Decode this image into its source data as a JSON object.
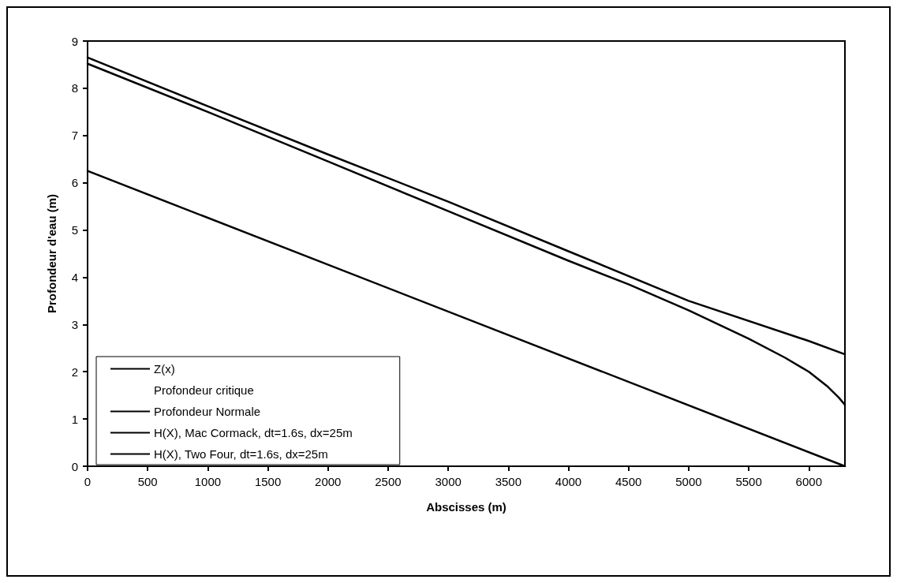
{
  "chart_data": {
    "type": "line",
    "xlabel": "Abscisses (m)",
    "ylabel": "Profondeur d'eau (m)",
    "xlim": [
      0,
      6300
    ],
    "xticks": [
      0,
      500,
      1000,
      1500,
      2000,
      2500,
      3000,
      3500,
      4000,
      4500,
      5000,
      5500,
      6000
    ],
    "ylim": [
      0,
      9
    ],
    "yticks": [
      0,
      1,
      2,
      3,
      4,
      5,
      6,
      7,
      8,
      9
    ],
    "grid": false,
    "legend": "bottom left",
    "marker": "none",
    "line_style": "solid",
    "series": [
      {
        "name": "Z(x)",
        "color": "#000000",
        "x": [
          0,
          6300
        ],
        "values": [
          6.25,
          0
        ]
      },
      {
        "name": "Profondeur critique"
      },
      {
        "name": "Profondeur Normale",
        "color": "#000000",
        "x": [
          0,
          1000,
          2000,
          3000,
          4000,
          5000,
          6000,
          6300
        ],
        "values": [
          8.65,
          7.62,
          6.6,
          5.6,
          4.55,
          3.5,
          2.65,
          2.37
        ]
      },
      {
        "name": "H(X), Mac Cormack, dt=1.6s, dx=25m",
        "color": "#000000",
        "x": [
          0,
          1000,
          2000,
          3000,
          4000,
          4500,
          5000,
          5500,
          5800,
          6000,
          6150,
          6250,
          6300
        ],
        "values": [
          8.52,
          7.5,
          6.45,
          5.4,
          4.35,
          3.85,
          3.3,
          2.7,
          2.3,
          2.0,
          1.7,
          1.45,
          1.3
        ]
      },
      {
        "name": "H(X), Two Four, dt=1.6s, dx=25m",
        "color": "#000000"
      }
    ]
  }
}
